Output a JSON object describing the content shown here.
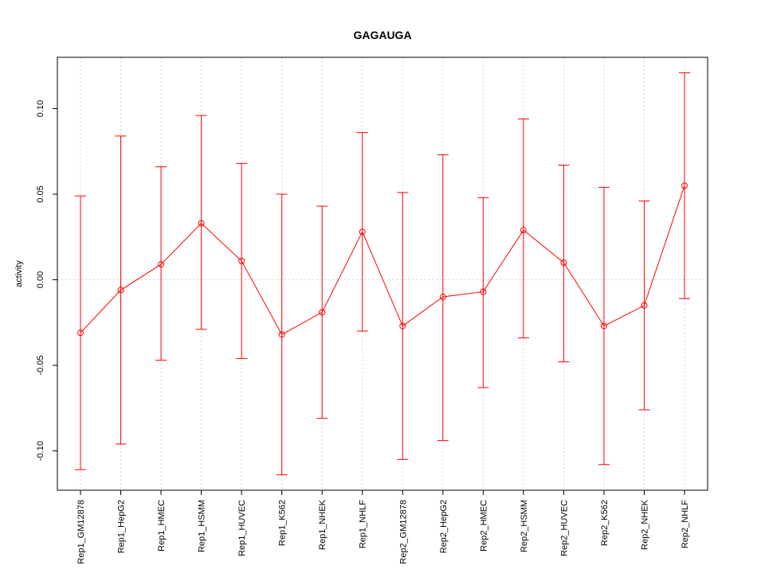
{
  "chart_data": {
    "type": "line",
    "title": "GAGAUGA",
    "xlabel": "",
    "ylabel": "activity",
    "ylim": [
      -0.123,
      0.13
    ],
    "yticks": [
      -0.1,
      -0.05,
      0.0,
      0.05,
      0.1
    ],
    "ytick_labels": [
      "-0.10",
      "-0.05",
      "0.00",
      "0.05",
      "0.10"
    ],
    "grid": true,
    "color": "#ff0000",
    "categories": [
      "Rep1_GM12878",
      "Rep1_HepG2",
      "Rep1_HMEC",
      "Rep1_HSMM",
      "Rep1_HUVEC",
      "Rep1_K562",
      "Rep1_NHEK",
      "Rep1_NHLF",
      "Rep2_GM12878",
      "Rep2_HepG2",
      "Rep2_HMEC",
      "Rep2_HSMM",
      "Rep2_HUVEC",
      "Rep2_K562",
      "Rep2_NHEK",
      "Rep2_NHLF"
    ],
    "series": [
      {
        "name": "activity",
        "values": [
          -0.031,
          -0.006,
          0.009,
          0.033,
          0.011,
          -0.032,
          -0.019,
          0.028,
          -0.027,
          -0.01,
          -0.007,
          0.029,
          0.01,
          -0.027,
          -0.015,
          0.055
        ],
        "upper": [
          0.049,
          0.084,
          0.066,
          0.096,
          0.068,
          0.05,
          0.043,
          0.086,
          0.051,
          0.073,
          0.048,
          0.094,
          0.067,
          0.054,
          0.046,
          0.121
        ],
        "lower": [
          -0.111,
          -0.096,
          -0.047,
          -0.029,
          -0.046,
          -0.114,
          -0.081,
          -0.03,
          -0.105,
          -0.094,
          -0.063,
          -0.034,
          -0.048,
          -0.108,
          -0.076,
          -0.011
        ]
      }
    ]
  }
}
